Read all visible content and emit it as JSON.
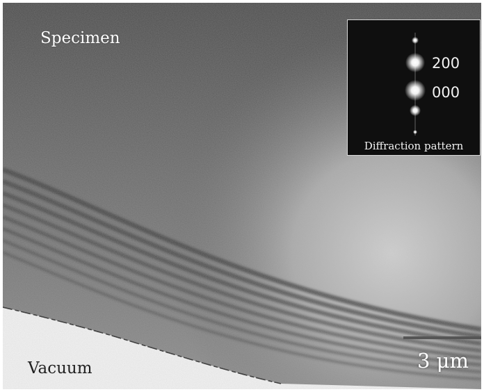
{
  "labels": {
    "specimen": "Specimen",
    "vacuum": "Vacuum"
  },
  "inset": {
    "caption": "Diffraction pattern",
    "spot_upper": "200",
    "spot_lower": "000"
  },
  "scale_bar": {
    "label": "3 μm"
  },
  "colors": {
    "specimen_tone": "#6a6a6a",
    "vacuum_tone": "#f4f4f4",
    "fringe_tone": "#3a3a3a",
    "inset_background": "#0f0f0f",
    "inset_border": "#d8d8d8"
  }
}
